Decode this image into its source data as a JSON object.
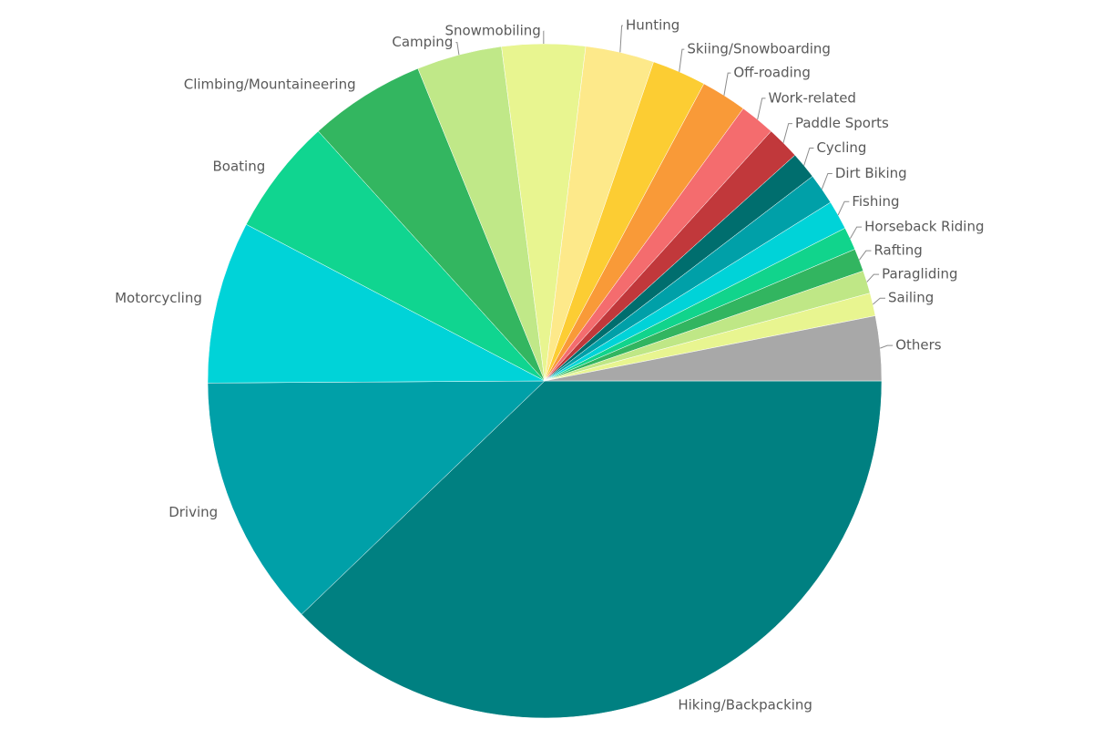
{
  "chart_data": {
    "type": "pie",
    "categories": [
      "Hiking/Backpacking",
      "Driving",
      "Motorcycling",
      "Boating",
      "Climbing/Mountaineering",
      "Camping",
      "Snowmobiling",
      "Hunting",
      "Skiing/Snowboarding",
      "Off-roading",
      "Work-related",
      "Paddle Sports",
      "Cycling",
      "Dirt Biking",
      "Fishing",
      "Horseback Riding",
      "Rafting",
      "Paragliding",
      "Sailing",
      "Others"
    ],
    "values": [
      37.9,
      12.1,
      7.8,
      5.6,
      5.6,
      4.1,
      4.0,
      3.3,
      2.6,
      2.2,
      1.7,
      1.6,
      1.3,
      1.5,
      1.4,
      1.1,
      1.1,
      1.1,
      1.1,
      3.1
    ],
    "colors": [
      "#008081",
      "#00a0a8",
      "#00d3d8",
      "#10d590",
      "#33b660",
      "#c0e888",
      "#e8f590",
      "#fde98a",
      "#fccd33",
      "#f99a38",
      "#f46c6e",
      "#c1383b",
      "#006e6e",
      "#00a0a8",
      "#00d3d8",
      "#11d48c",
      "#32b560",
      "#bfe786",
      "#e8f590",
      "#a8a8a8"
    ]
  }
}
